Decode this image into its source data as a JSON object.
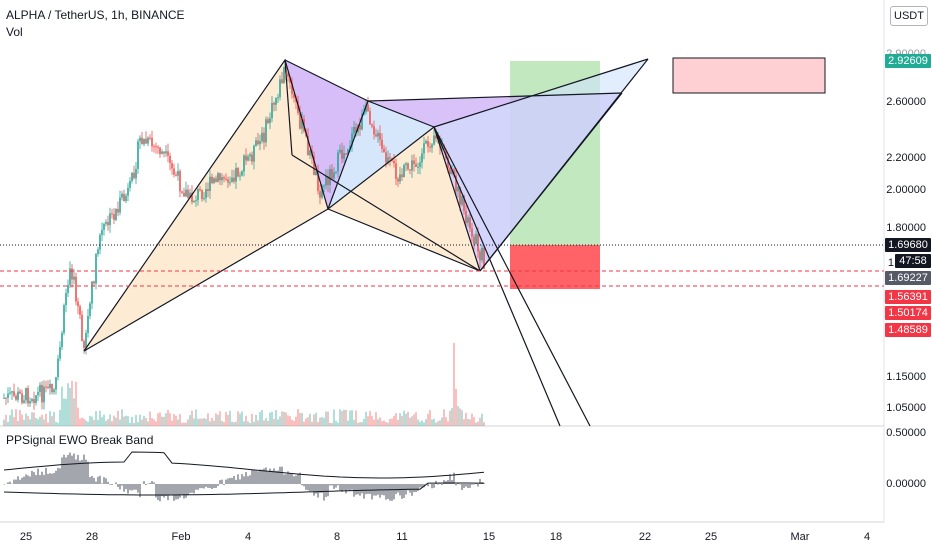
{
  "header": {
    "symbol": "ALPHA / TetherUS, 1h, BINANCE",
    "volume_label": "Vol",
    "currency_button": "USDT"
  },
  "indicator": {
    "name": "PPSignal EWO Break Band",
    "axis_labels": [
      "0.50000",
      "0.00000"
    ]
  },
  "price_axis": {
    "labels": [
      "2.60000",
      "2.20000",
      "2.00000",
      "1.80000",
      "1.15000",
      "1.05000"
    ],
    "partial_label_top": "2.90000",
    "partial_label_mid": "1"
  },
  "badges": [
    {
      "text": "2.92609",
      "color": "#22ab94"
    },
    {
      "text": "1.69680",
      "color": "#131722"
    },
    {
      "text": "47:58",
      "color": "#131722"
    },
    {
      "text": "1.69227",
      "color": "#555a66"
    },
    {
      "text": "1.56391",
      "color": "#f23645"
    },
    {
      "text": "1.50174",
      "color": "#f23645"
    },
    {
      "text": "1.48589",
      "color": "#f23645"
    }
  ],
  "time_axis": {
    "labels": [
      "25",
      "28",
      "Feb",
      "4",
      "8",
      "11",
      "15",
      "18",
      "22",
      "25",
      "Mar",
      "4"
    ]
  },
  "colors": {
    "up_candle": "#26a69a",
    "down_candle": "#ef5350",
    "pattern_orange": "#fde6c8",
    "pattern_purple": "#c9a8f5",
    "pattern_blue": "#cfe3fb",
    "target_green": "#b7e4b5",
    "stop_red": "#ff5a5f"
  }
}
